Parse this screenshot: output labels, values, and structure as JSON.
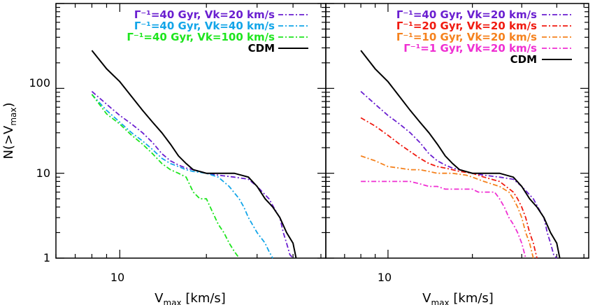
{
  "chart_data": [
    {
      "type": "line",
      "panel": "left",
      "xlabel": "V_max [km/s]",
      "ylabel": "N(>V_max)",
      "x_scale": "log",
      "y_scale": "log",
      "xlim": [
        6.0,
        52.0
      ],
      "ylim": [
        1,
        1000
      ],
      "x_ticks": [
        10
      ],
      "y_ticks": [
        1,
        10,
        100
      ],
      "legend_position": "top-right",
      "series": [
        {
          "name": "Γ⁻¹=40 Gyr, Vk=20 km/s",
          "color": "#6a1fd0",
          "style": "dash-dot",
          "points": [
            [
              8,
              92
            ],
            [
              9,
              65
            ],
            [
              10,
              48
            ],
            [
              11,
              38
            ],
            [
              12,
              30
            ],
            [
              13,
              23
            ],
            [
              14,
              17
            ],
            [
              15,
              14
            ],
            [
              16,
              12.5
            ],
            [
              17,
              11.5
            ],
            [
              18,
              11
            ],
            [
              20,
              10
            ],
            [
              22,
              9.5
            ],
            [
              25,
              9
            ],
            [
              28,
              8.5
            ],
            [
              30,
              7
            ],
            [
              33,
              5
            ],
            [
              35,
              3.5
            ],
            [
              36,
              3
            ],
            [
              37,
              2
            ],
            [
              38,
              1.5
            ],
            [
              39,
              1.1
            ],
            [
              40,
              1
            ]
          ]
        },
        {
          "name": "Γ⁻¹=40 Gyr, Vk=40 km/s",
          "color": "#12a5e8",
          "style": "dash-dot",
          "points": [
            [
              8,
              85
            ],
            [
              9,
              55
            ],
            [
              10,
              40
            ],
            [
              11,
              30
            ],
            [
              12,
              24
            ],
            [
              13,
              19
            ],
            [
              14,
              15
            ],
            [
              15,
              13
            ],
            [
              16,
              12
            ],
            [
              17,
              11
            ],
            [
              18,
              10.5
            ],
            [
              20,
              10
            ],
            [
              22,
              9
            ],
            [
              24,
              7
            ],
            [
              26,
              5
            ],
            [
              27,
              4
            ],
            [
              28,
              3
            ],
            [
              30,
              2
            ],
            [
              32,
              1.5
            ],
            [
              33,
              1.2
            ],
            [
              34,
              1
            ]
          ]
        },
        {
          "name": "Γ⁻¹=40 Gyr, Vk=100 km/s",
          "color": "#1ee51e",
          "style": "dash-dot",
          "points": [
            [
              8,
              85
            ],
            [
              9,
              50
            ],
            [
              10,
              38
            ],
            [
              11,
              28
            ],
            [
              12,
              22
            ],
            [
              13,
              17
            ],
            [
              14,
              13
            ],
            [
              15,
              11
            ],
            [
              16,
              10
            ],
            [
              17,
              9
            ],
            [
              18,
              6
            ],
            [
              19,
              5
            ],
            [
              20,
              5
            ],
            [
              21,
              3.5
            ],
            [
              22,
              2.5
            ],
            [
              23,
              2
            ],
            [
              24,
              1.5
            ],
            [
              25,
              1.2
            ],
            [
              26,
              1
            ]
          ]
        },
        {
          "name": "CDM",
          "color": "#000000",
          "style": "solid",
          "points": [
            [
              8,
              280
            ],
            [
              9,
              170
            ],
            [
              10,
              120
            ],
            [
              11,
              80
            ],
            [
              12,
              55
            ],
            [
              13,
              40
            ],
            [
              14,
              30
            ],
            [
              15,
              22
            ],
            [
              16,
              16
            ],
            [
              17,
              13
            ],
            [
              18,
              11
            ],
            [
              20,
              10
            ],
            [
              22,
              10
            ],
            [
              25,
              10
            ],
            [
              28,
              9
            ],
            [
              30,
              7
            ],
            [
              32,
              5
            ],
            [
              34,
              4
            ],
            [
              36,
              3
            ],
            [
              38,
              2
            ],
            [
              40,
              1.5
            ],
            [
              41,
              1
            ]
          ]
        }
      ]
    },
    {
      "type": "line",
      "panel": "right",
      "xlabel": "V_max [km/s]",
      "ylabel": "",
      "x_scale": "log",
      "y_scale": "log",
      "xlim": [
        6.0,
        52.0
      ],
      "ylim": [
        1,
        1000
      ],
      "x_ticks": [
        10
      ],
      "y_ticks": [
        1,
        10,
        100
      ],
      "legend_position": "top-right",
      "series": [
        {
          "name": "Γ⁻¹=40 Gyr, Vk=20 km/s",
          "color": "#6a1fd0",
          "style": "dash-dot",
          "points": [
            [
              8,
              92
            ],
            [
              9,
              65
            ],
            [
              10,
              48
            ],
            [
              11,
              38
            ],
            [
              12,
              30
            ],
            [
              13,
              23
            ],
            [
              14,
              17
            ],
            [
              15,
              14
            ],
            [
              16,
              12.5
            ],
            [
              17,
              11.5
            ],
            [
              18,
              11
            ],
            [
              20,
              10
            ],
            [
              22,
              9.5
            ],
            [
              25,
              9
            ],
            [
              28,
              8.5
            ],
            [
              30,
              7
            ],
            [
              33,
              5
            ],
            [
              35,
              3.5
            ],
            [
              36,
              3
            ],
            [
              37,
              2
            ],
            [
              38,
              1.5
            ],
            [
              39,
              1.1
            ],
            [
              40,
              1
            ]
          ]
        },
        {
          "name": "Γ⁻¹=20 Gyr, Vk=20 km/s",
          "color": "#f01a10",
          "style": "dash-dot",
          "points": [
            [
              8,
              45
            ],
            [
              9,
              36
            ],
            [
              10,
              28
            ],
            [
              11,
              22
            ],
            [
              12,
              18
            ],
            [
              13,
              15
            ],
            [
              14,
              13
            ],
            [
              15,
              12
            ],
            [
              16,
              11.5
            ],
            [
              17,
              11
            ],
            [
              18,
              10.5
            ],
            [
              20,
              10
            ],
            [
              22,
              9
            ],
            [
              25,
              8
            ],
            [
              28,
              6
            ],
            [
              29,
              5
            ],
            [
              30,
              4
            ],
            [
              31,
              3
            ],
            [
              32,
              2
            ],
            [
              33,
              1.5
            ],
            [
              34,
              1
            ]
          ]
        },
        {
          "name": "Γ⁻¹=10 Gyr, Vk=20 km/s",
          "color": "#f5821e",
          "style": "dash-dot",
          "points": [
            [
              8,
              16
            ],
            [
              9,
              14
            ],
            [
              10,
              12
            ],
            [
              11,
              11.5
            ],
            [
              12,
              11
            ],
            [
              13,
              11
            ],
            [
              14,
              10.5
            ],
            [
              15,
              10
            ],
            [
              17,
              10
            ],
            [
              19,
              9.5
            ],
            [
              20,
              9
            ],
            [
              22,
              8
            ],
            [
              25,
              7
            ],
            [
              27,
              6
            ],
            [
              28,
              5
            ],
            [
              29,
              4
            ],
            [
              30,
              3
            ],
            [
              31,
              2
            ],
            [
              32,
              1.5
            ],
            [
              33,
              1
            ]
          ]
        },
        {
          "name": "Γ⁻¹=1 Gyr, Vk=20 km/s",
          "color": "#ef2fd2",
          "style": "dash-dot",
          "points": [
            [
              8,
              8
            ],
            [
              10,
              8
            ],
            [
              12,
              8
            ],
            [
              13,
              7.5
            ],
            [
              14,
              7
            ],
            [
              15,
              7
            ],
            [
              16,
              6.5
            ],
            [
              17,
              6.5
            ],
            [
              18,
              6.5
            ],
            [
              20,
              6.5
            ],
            [
              21,
              6
            ],
            [
              24,
              6
            ],
            [
              25,
              5
            ],
            [
              26,
              4
            ],
            [
              27,
              3
            ],
            [
              28,
              2.5
            ],
            [
              29,
              2
            ],
            [
              30,
              1.5
            ],
            [
              31,
              1
            ]
          ]
        },
        {
          "name": "CDM",
          "color": "#000000",
          "style": "solid",
          "points": [
            [
              8,
              280
            ],
            [
              9,
              170
            ],
            [
              10,
              120
            ],
            [
              11,
              80
            ],
            [
              12,
              55
            ],
            [
              13,
              40
            ],
            [
              14,
              30
            ],
            [
              15,
              22
            ],
            [
              16,
              16
            ],
            [
              17,
              13
            ],
            [
              18,
              11
            ],
            [
              20,
              10
            ],
            [
              22,
              10
            ],
            [
              25,
              10
            ],
            [
              28,
              9
            ],
            [
              30,
              7
            ],
            [
              32,
              5
            ],
            [
              34,
              4
            ],
            [
              36,
              3
            ],
            [
              38,
              2
            ],
            [
              40,
              1.5
            ],
            [
              41,
              1
            ]
          ]
        }
      ]
    }
  ],
  "y_tick_labels": [
    "100",
    "10",
    "1"
  ],
  "x_tick_labels": [
    "10"
  ],
  "ylabel_main": "N(>V",
  "ylabel_sub": "max",
  "ylabel_end": ")",
  "xlabel_main": "V",
  "xlabel_sub": "max",
  "xlabel_end": " [km/s]"
}
